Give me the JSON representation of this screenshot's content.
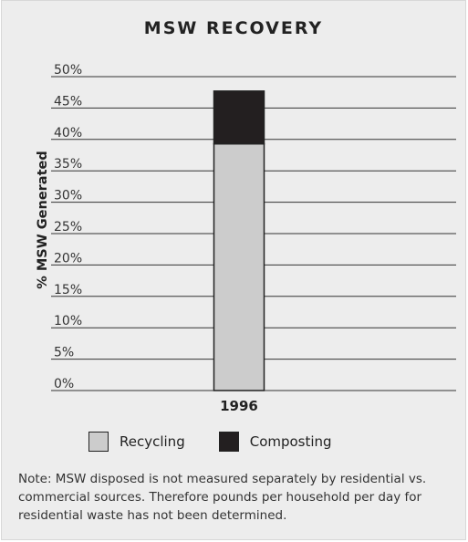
{
  "chart_data": {
    "type": "bar",
    "stacked": true,
    "title": "MSW RECOVERY",
    "ylabel": "% MSW Generated",
    "xlabel": "",
    "categories": [
      "1996"
    ],
    "ylim": [
      0,
      50
    ],
    "yticks": [
      "0%",
      "5%",
      "10%",
      "15%",
      "20%",
      "25%",
      "30%",
      "35%",
      "40%",
      "45%",
      "50%"
    ],
    "grid": true,
    "legend_position": "bottom",
    "series": [
      {
        "name": "Recycling",
        "values": [
          39.3
        ],
        "color": "#cccccc"
      },
      {
        "name": "Composting",
        "values": [
          8.4
        ],
        "color": "#231f20"
      }
    ]
  },
  "note": "Note:  MSW disposed is not measured separately by residential vs. commercial sources.  Therefore pounds per household per day for residential waste has not been determined."
}
